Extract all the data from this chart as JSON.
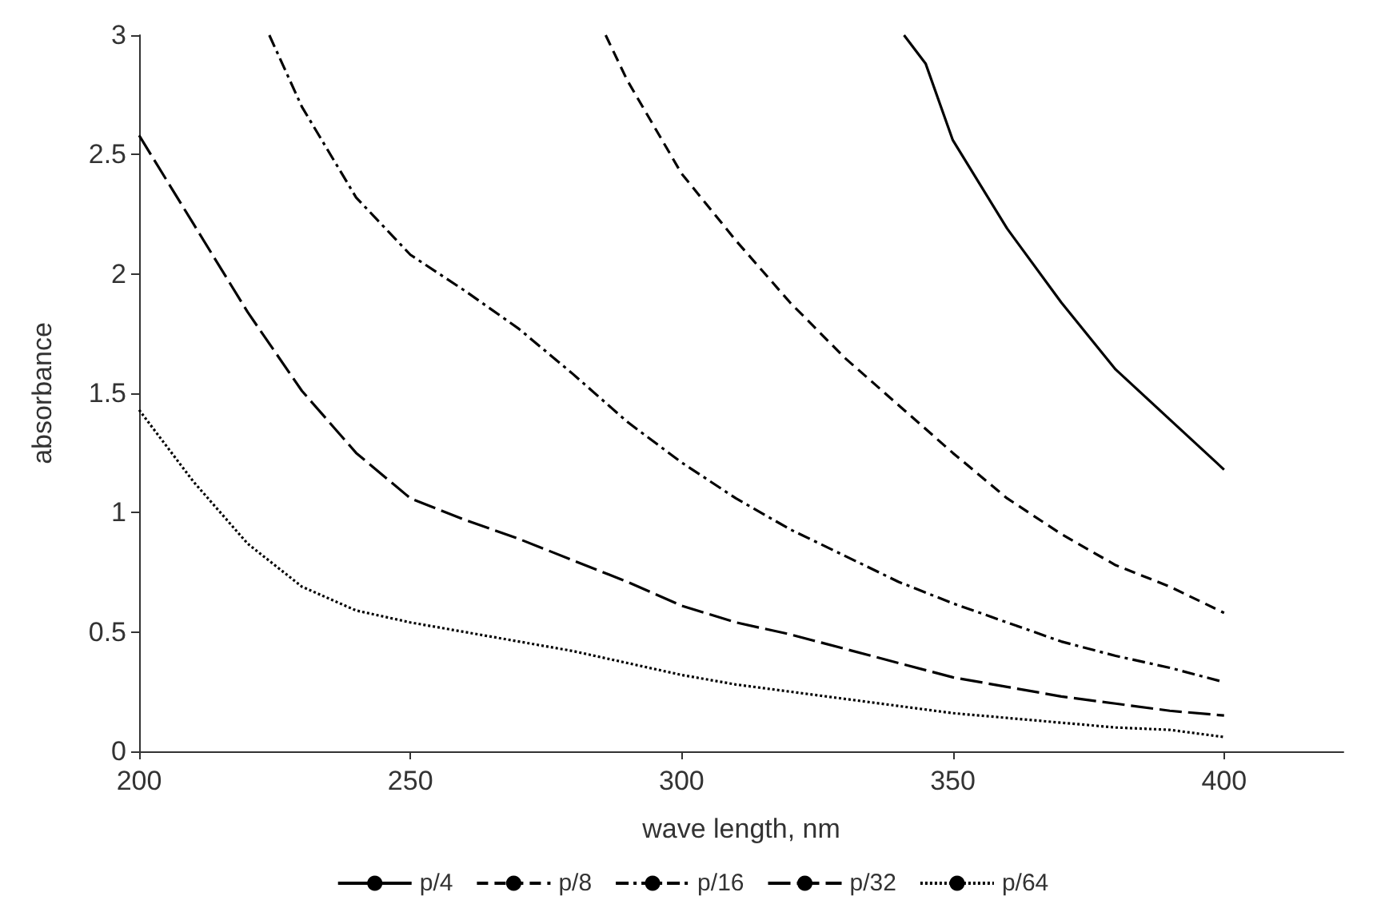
{
  "chart_data": {
    "type": "line",
    "xlabel": "wave length, nm",
    "ylabel": "absorbance",
    "xlim": [
      200,
      422
    ],
    "xticks": [
      200,
      250,
      300,
      350,
      400
    ],
    "ylim": [
      0,
      3
    ],
    "yticks": [
      0,
      0.5,
      1,
      1.5,
      2,
      2.5,
      3
    ],
    "grid": false,
    "legend": "bottom",
    "marker": "none",
    "series": [
      {
        "name": "p/4",
        "color": "#000000",
        "line_style": "solid",
        "x": [
          341,
          345,
          350,
          360,
          370,
          380,
          390,
          400
        ],
        "values": [
          3,
          2.88,
          2.56,
          2.19,
          1.88,
          1.6,
          1.39,
          1.18
        ]
      },
      {
        "name": "p/8",
        "color": "#000000",
        "line_style": "dashed",
        "x": [
          286,
          290,
          300,
          310,
          320,
          330,
          340,
          350,
          360,
          370,
          380,
          390,
          400
        ],
        "values": [
          3,
          2.81,
          2.42,
          2.14,
          1.88,
          1.65,
          1.45,
          1.25,
          1.06,
          0.91,
          0.78,
          0.69,
          0.58
        ]
      },
      {
        "name": "p/16",
        "color": "#000000",
        "line_style": "dashdot",
        "x": [
          224,
          230,
          240,
          250,
          260,
          270,
          280,
          290,
          300,
          310,
          320,
          330,
          340,
          350,
          360,
          370,
          380,
          390,
          400
        ],
        "values": [
          3,
          2.7,
          2.32,
          2.08,
          1.93,
          1.77,
          1.58,
          1.38,
          1.21,
          1.06,
          0.93,
          0.82,
          0.71,
          0.62,
          0.54,
          0.46,
          0.4,
          0.35,
          0.29
        ]
      },
      {
        "name": "p/32",
        "color": "#000000",
        "line_style": "longdash",
        "x": [
          200,
          210,
          220,
          230,
          240,
          250,
          260,
          270,
          280,
          290,
          300,
          310,
          320,
          330,
          340,
          350,
          360,
          370,
          380,
          390,
          400
        ],
        "values": [
          2.58,
          2.21,
          1.84,
          1.51,
          1.25,
          1.06,
          0.97,
          0.89,
          0.8,
          0.71,
          0.61,
          0.54,
          0.49,
          0.43,
          0.37,
          0.31,
          0.27,
          0.23,
          0.2,
          0.17,
          0.15
        ]
      },
      {
        "name": "p/64",
        "color": "#000000",
        "line_style": "dotted",
        "x": [
          200,
          210,
          220,
          230,
          240,
          250,
          260,
          270,
          280,
          290,
          300,
          310,
          320,
          330,
          340,
          350,
          360,
          370,
          380,
          390,
          400
        ],
        "values": [
          1.43,
          1.13,
          0.87,
          0.69,
          0.59,
          0.54,
          0.5,
          0.46,
          0.42,
          0.37,
          0.32,
          0.28,
          0.25,
          0.22,
          0.19,
          0.16,
          0.14,
          0.12,
          0.1,
          0.09,
          0.06
        ]
      }
    ]
  }
}
